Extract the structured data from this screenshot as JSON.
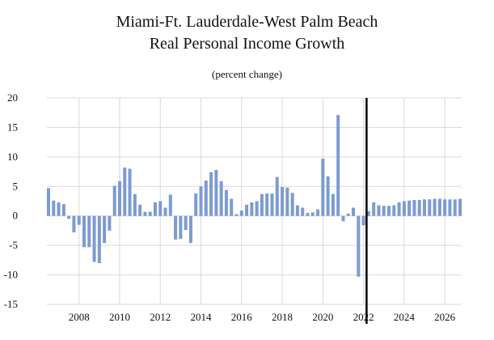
{
  "chart_data": {
    "type": "bar",
    "title": "Miami-Ft. Lauderdale-West Palm Beach",
    "subtitle": "Real Personal Income Growth",
    "note": "(percent change)",
    "xlabel": "",
    "ylabel": "",
    "ylim": [
      -15,
      20
    ],
    "yticks": [
      20,
      15,
      10,
      5,
      0,
      -5,
      -10,
      -15
    ],
    "xticks": [
      2008,
      2010,
      2012,
      2014,
      2016,
      2018,
      2020,
      2022,
      2024,
      2026
    ],
    "xlim": [
      2006.5,
      2026.75
    ],
    "grid": true,
    "legend": "none",
    "bar_color": "#7c9bd0",
    "forecast_start": 2022.25,
    "x": [
      2006.5,
      2006.75,
      2007.0,
      2007.25,
      2007.5,
      2007.75,
      2008.0,
      2008.25,
      2008.5,
      2008.75,
      2009.0,
      2009.25,
      2009.5,
      2009.75,
      2010.0,
      2010.25,
      2010.5,
      2010.75,
      2011.0,
      2011.25,
      2011.5,
      2011.75,
      2012.0,
      2012.25,
      2012.5,
      2012.75,
      2013.0,
      2013.25,
      2013.5,
      2013.75,
      2014.0,
      2014.25,
      2014.5,
      2014.75,
      2015.0,
      2015.25,
      2015.5,
      2015.75,
      2016.0,
      2016.25,
      2016.5,
      2016.75,
      2017.0,
      2017.25,
      2017.5,
      2017.75,
      2018.0,
      2018.25,
      2018.5,
      2018.75,
      2019.0,
      2019.25,
      2019.5,
      2019.75,
      2020.0,
      2020.25,
      2020.5,
      2020.75,
      2021.0,
      2021.25,
      2021.5,
      2021.75,
      2022.0,
      2022.25,
      2022.5,
      2022.75,
      2023.0,
      2023.25,
      2023.5,
      2023.75,
      2024.0,
      2024.25,
      2024.5,
      2024.75,
      2025.0,
      2025.25,
      2025.5,
      2025.75,
      2026.0,
      2026.25,
      2026.5,
      2026.75
    ],
    "values": [
      4.7,
      2.6,
      2.3,
      2.0,
      -0.5,
      -2.8,
      -1.5,
      -5.3,
      -5.3,
      -7.8,
      -8.0,
      -4.6,
      -2.5,
      5.1,
      5.9,
      8.2,
      8.0,
      3.7,
      1.9,
      0.7,
      0.7,
      2.3,
      2.5,
      1.4,
      3.6,
      -4.0,
      -3.9,
      -2.4,
      -4.6,
      3.8,
      5.0,
      6.0,
      7.4,
      7.8,
      5.9,
      4.4,
      2.9,
      0.3,
      0.9,
      1.9,
      2.3,
      2.5,
      3.7,
      3.8,
      3.8,
      6.6,
      4.9,
      4.8,
      3.9,
      1.8,
      1.4,
      0.5,
      0.6,
      1.1,
      9.7,
      6.7,
      3.7,
      17.1,
      -0.9,
      0.4,
      1.4,
      -10.3,
      -1.6,
      0.8,
      2.3,
      1.8,
      1.7,
      1.7,
      1.8,
      2.3,
      2.5,
      2.6,
      2.7,
      2.7,
      2.8,
      2.8,
      2.9,
      2.9,
      2.8,
      2.8,
      2.8,
      2.9
    ]
  }
}
